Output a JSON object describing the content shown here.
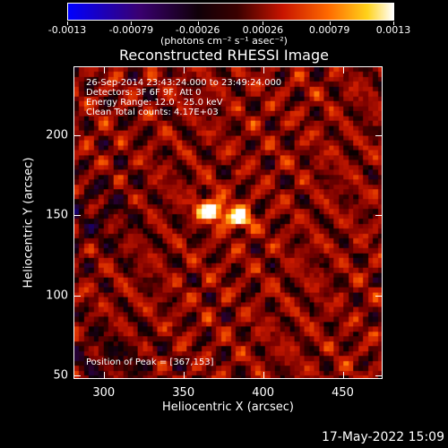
{
  "colorbar": {
    "tick_labels": [
      "-0.0013",
      "-0.00079",
      "-0.00026",
      "0.00026",
      "0.00079",
      "0.0013"
    ],
    "tick_values": [
      -0.0013,
      -0.00079,
      -0.00026,
      0.00026,
      0.00079,
      0.0013
    ],
    "unit_label": "(photons cm⁻² s⁻¹ asec⁻²)",
    "range": [
      -0.0013,
      0.0013
    ]
  },
  "plot": {
    "title": "Reconstructed RHESSI Image",
    "info_lines": [
      "26-Sep-2014 23:43:24.000 to 23:49:24.000",
      "Detectors: 3F 6F 9F, Att 0",
      "Energy Range: 12.0 - 25.0 keV",
      "Clean     Total counts: 4.17E+03"
    ],
    "peak_text": "Position of Peak = [367,153]"
  },
  "footer": {
    "timestamp": "17-May-2022 15:09"
  },
  "chart_data": {
    "type": "heatmap",
    "title": "Reconstructed RHESSI Image",
    "xlabel": "Heliocentric X (arcsec)",
    "ylabel": "Heliocentric Y (arcsec)",
    "xlim": [
      281,
      475
    ],
    "ylim": [
      48,
      243
    ],
    "xticks": [
      300,
      350,
      400,
      450
    ],
    "yticks": [
      50,
      100,
      150,
      200
    ],
    "colorscale_range": [
      -0.0013,
      0.0013
    ],
    "colorscale_name": "heat (black-red-orange-yellow-white, negative blue-purple)",
    "sources": [
      {
        "x": 367,
        "y": 153,
        "relative_intensity": 1.0
      },
      {
        "x": 384,
        "y": 148,
        "relative_intensity": 0.85
      }
    ],
    "peak": [
      367,
      153
    ]
  }
}
